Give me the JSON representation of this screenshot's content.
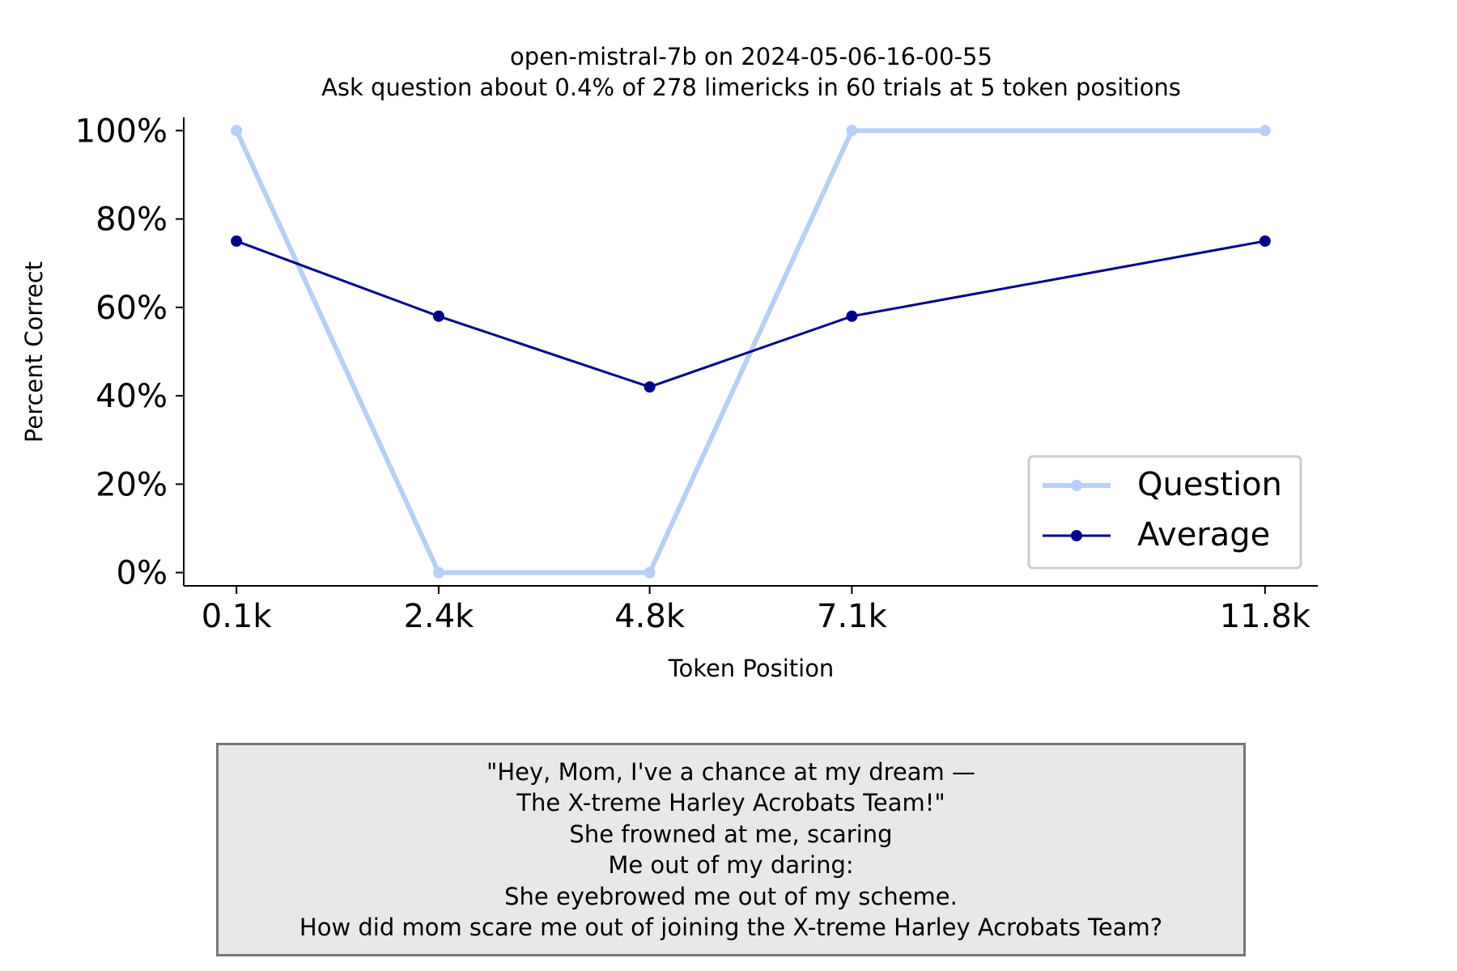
{
  "chart_data": {
    "type": "line",
    "title": "open-mistral-7b on 2024-05-06-16-00-55",
    "subtitle": "Ask question about 0.4% of 278 limericks in 60 trials at 5 token positions",
    "xlabel": "Token Position",
    "ylabel": "Percent Correct",
    "categories": [
      "0.1k",
      "2.4k",
      "4.8k",
      "7.1k",
      "11.8k"
    ],
    "x": [
      0.1,
      2.4,
      4.8,
      7.1,
      11.8
    ],
    "xlim": [
      -0.5,
      12.4
    ],
    "ylim": [
      -3,
      103
    ],
    "yticks": [
      0,
      20,
      40,
      60,
      80,
      100
    ],
    "ytick_labels": [
      "0%",
      "20%",
      "40%",
      "60%",
      "80%",
      "100%"
    ],
    "grid": false,
    "legend_position": "lower-right",
    "series": [
      {
        "name": "Question",
        "values": [
          100,
          0,
          0,
          100,
          100
        ],
        "color": "#b8d0f6"
      },
      {
        "name": "Average",
        "values": [
          75,
          58,
          42,
          58,
          75
        ],
        "color": "#00008b"
      }
    ]
  },
  "note": {
    "lines": [
      "\"Hey, Mom, I've a chance at my dream —",
      "The X-treme Harley Acrobats Team!\"",
      "She frowned at me, scaring",
      "Me out of my daring:",
      "She eyebrowed me out of my scheme.",
      "How did mom scare me out of joining the X-treme Harley Acrobats Team?"
    ]
  }
}
